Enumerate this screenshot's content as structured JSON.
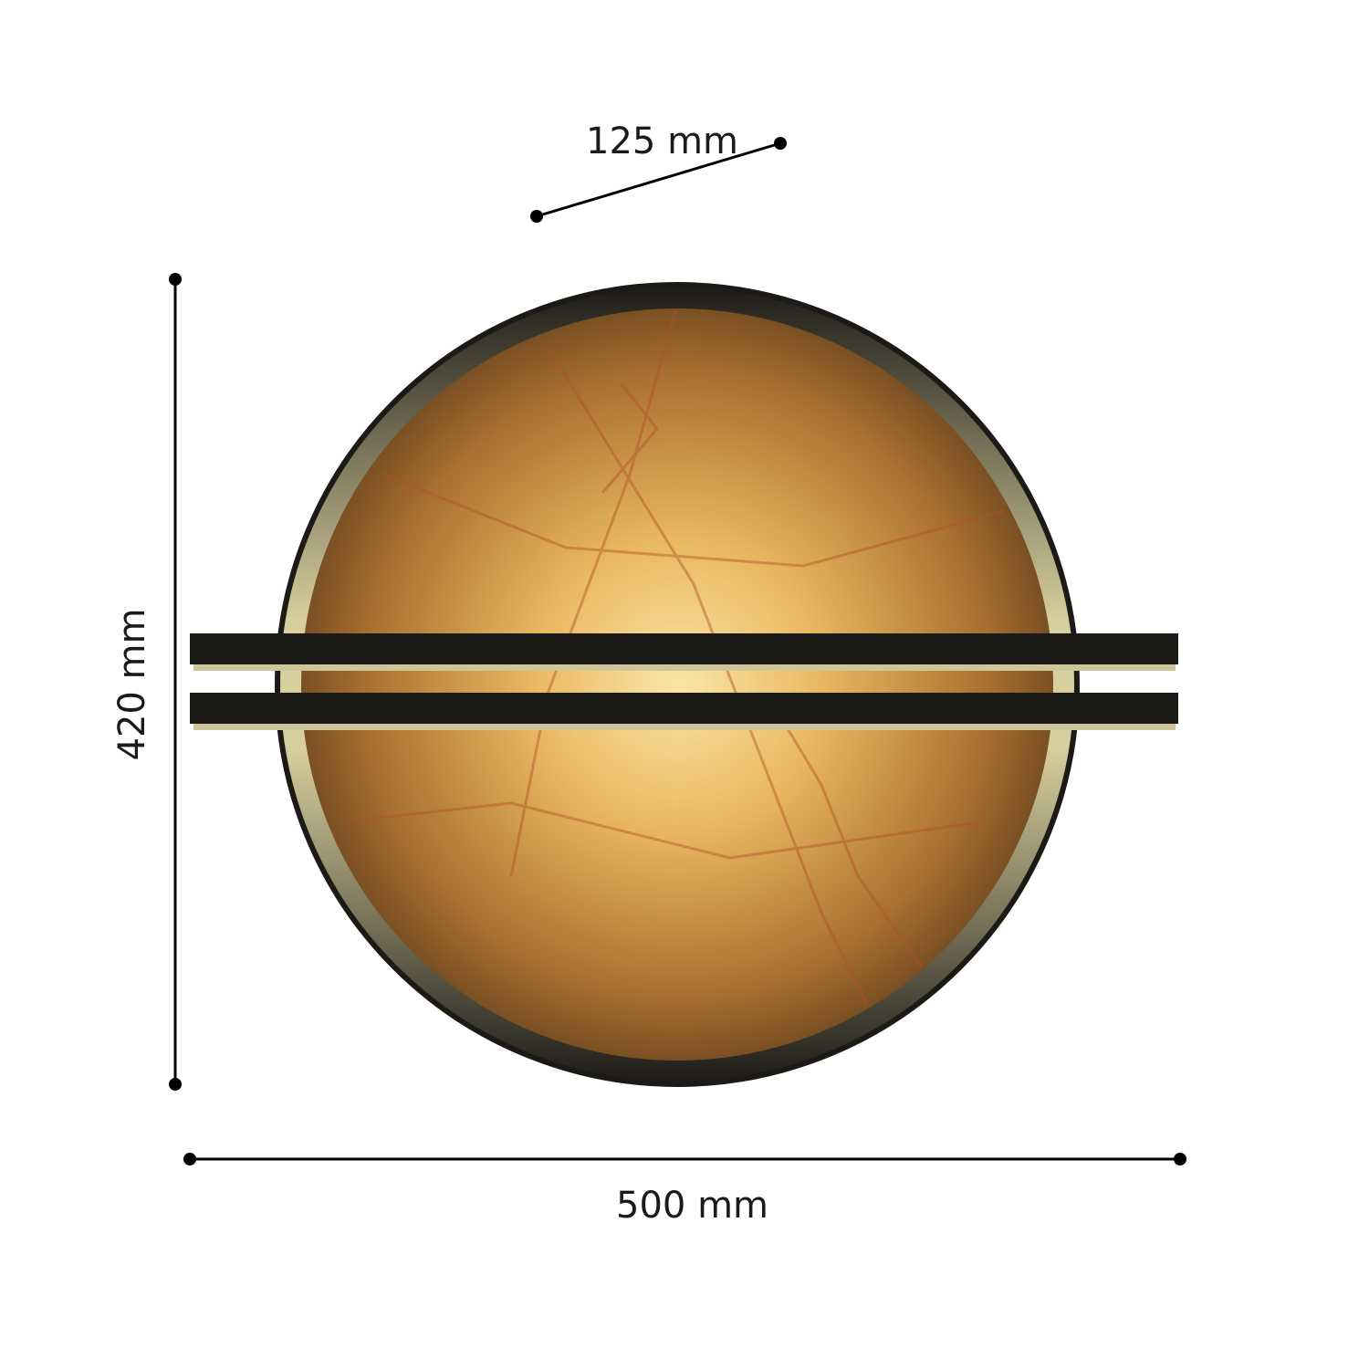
{
  "dimensions": {
    "depth": "125 mm",
    "height": "420 mm",
    "width": "500 mm"
  },
  "colors": {
    "frame": "#1c1a17",
    "shade_light": "#f2c76a",
    "shade_dark": "#6e4a22",
    "bar_underside": "#cfc59a",
    "dimension_line": "#000000"
  }
}
